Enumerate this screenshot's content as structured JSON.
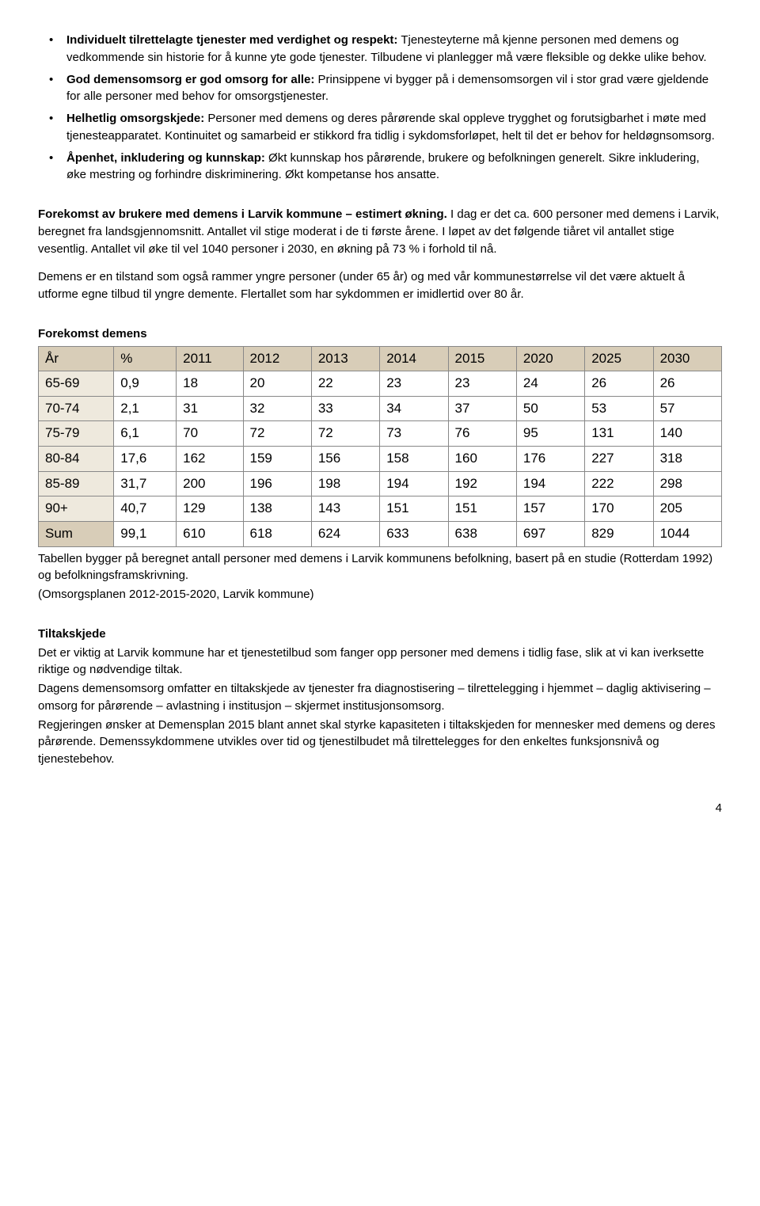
{
  "bullets": [
    {
      "lead": "Individuelt tilrettelagte tjenester med verdighet og respekt:",
      "rest": " Tjenesteyterne må kjenne personen med demens og vedkommende sin historie for å kunne yte gode tjenester. Tilbudene vi planlegger må være fleksible og dekke ulike behov."
    },
    {
      "lead": "God demensomsorg er god omsorg for alle:",
      "rest": " Prinsippene vi bygger på i demensomsorgen vil i stor grad være gjeldende for alle personer med behov for omsorgstjenester."
    },
    {
      "lead": "Helhetlig omsorgskjede:",
      "rest": " Personer med demens og deres pårørende skal oppleve trygghet og forutsigbarhet i møte med tjenesteapparatet. Kontinuitet og samarbeid er stikkord fra tidlig i sykdomsforløpet, helt til det er behov for heldøgnsomsorg."
    },
    {
      "lead": "Åpenhet, inkludering og kunnskap:",
      "rest": " Økt kunnskap hos pårørende, brukere og befolkningen generelt. Sikre inkludering, øke mestring og forhindre diskriminering. Økt kompetanse hos ansatte."
    }
  ],
  "forekomst": {
    "lead": "Forekomst av brukere med demens i Larvik kommune – estimert økning.",
    "rest": " I dag er det ca. 600 personer med demens i Larvik, beregnet fra landsgjennomsnitt. Antallet vil stige moderat i de ti første årene. I løpet av det følgende tiåret vil antallet stige vesentlig. Antallet vil øke til vel 1040 personer i 2030, en økning på 73 % i forhold til nå."
  },
  "paragraph2": "Demens er en tilstand som også rammer yngre personer (under 65 år) og med vår kommunestørrelse vil det være aktuelt å utforme egne tilbud til yngre demente. Flertallet som har sykdommen er imidlertid over 80 år.",
  "table": {
    "title": "Forekomst demens",
    "headers": [
      "År",
      "%",
      "2011",
      "2012",
      "2013",
      "2014",
      "2015",
      "2020",
      "2025",
      "2030"
    ],
    "rows": [
      [
        "65-69",
        "0,9",
        "18",
        "20",
        "22",
        "23",
        "23",
        "24",
        "26",
        "26"
      ],
      [
        "70-74",
        "2,1",
        "31",
        "32",
        "33",
        "34",
        "37",
        "50",
        "53",
        "57"
      ],
      [
        "75-79",
        "6,1",
        "70",
        "72",
        "72",
        "73",
        "76",
        "95",
        "131",
        "140"
      ],
      [
        "80-84",
        "17,6",
        "162",
        "159",
        "156",
        "158",
        "160",
        "176",
        "227",
        "318"
      ],
      [
        "85-89",
        "31,7",
        "200",
        "196",
        "198",
        "194",
        "192",
        "194",
        "222",
        "298"
      ],
      [
        "90+",
        "40,7",
        "129",
        "138",
        "143",
        "151",
        "151",
        "157",
        "170",
        "205"
      ],
      [
        "Sum",
        "99,1",
        "610",
        "618",
        "624",
        "633",
        "638",
        "697",
        "829",
        "1044"
      ]
    ],
    "note1": "Tabellen bygger på beregnet antall personer med demens i Larvik kommunens befolkning, basert på en studie (Rotterdam 1992) og befolkningsframskrivning.",
    "note2": "(Omsorgsplanen 2012-2015-2020, Larvik kommune)",
    "header_bg": "#d8cdb8",
    "rowhead_bg": "#eee9dd",
    "border_color": "#888888"
  },
  "tiltak": {
    "heading": "Tiltakskjede",
    "p1": "Det er viktig at Larvik kommune har et tjenestetilbud som fanger opp personer med demens i tidlig fase, slik at vi kan iverksette riktige og nødvendige tiltak.",
    "p2": "Dagens demensomsorg omfatter en tiltakskjede av tjenester fra diagnostisering – tilrettelegging i hjemmet – daglig aktivisering – omsorg for pårørende – avlastning i institusjon – skjermet institusjonsomsorg.",
    "p3": "Regjeringen ønsker at Demensplan 2015 blant annet skal styrke kapasiteten i tiltakskjeden for mennesker med demens og deres pårørende.  Demenssykdommene utvikles over tid og tjenestilbudet må tilrettelegges for den enkeltes funksjonsnivå og tjenestebehov."
  },
  "page_number": "4"
}
